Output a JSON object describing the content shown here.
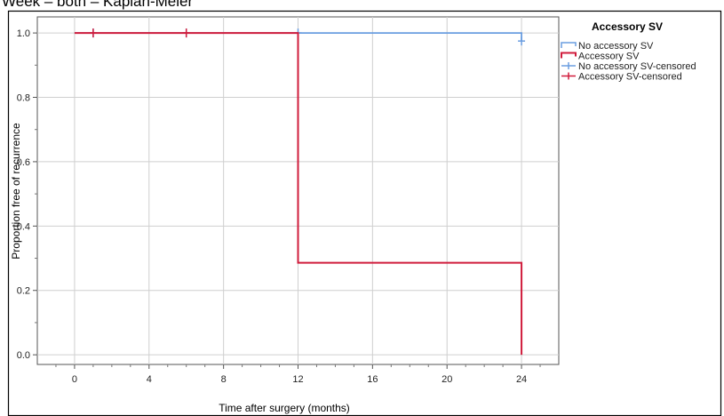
{
  "header": {
    "fragment": "Week – both – Kaplan-Meier"
  },
  "chart_data": {
    "type": "line",
    "step": true,
    "xlabel": "Time after surgery (months)",
    "ylabel": "Proportion free of recurrence",
    "xlim": [
      -2,
      26
    ],
    "ylim": [
      -0.03,
      1.05
    ],
    "xticks": [
      0,
      4,
      8,
      12,
      16,
      20,
      24
    ],
    "yticks": [
      0.0,
      0.2,
      0.4,
      0.6,
      0.8,
      1.0
    ],
    "xtick_labels": [
      "0",
      "4",
      "8",
      "12",
      "16",
      "20",
      "24"
    ],
    "ytick_labels": [
      "0.0",
      "0.2",
      "0.4",
      "0.6",
      "0.8",
      "1.0"
    ],
    "grid": true,
    "legend_title": "Accessory SV",
    "legend_position": "top-right outside",
    "legend_entries": [
      "No accessory SV",
      "Accessory SV",
      "No accessory SV-censored",
      "Accessory SV-censored"
    ],
    "series": [
      {
        "name": "No accessory SV",
        "color": "#6a9de0",
        "steps": [
          [
            0,
            1.0
          ],
          [
            24,
            1.0
          ],
          [
            24,
            0.975
          ]
        ],
        "censored": [
          [
            1,
            1.0
          ],
          [
            6,
            1.0
          ],
          [
            12,
            1.0
          ],
          [
            24,
            0.975
          ]
        ]
      },
      {
        "name": "Accessory SV",
        "color": "#d01c3c",
        "steps": [
          [
            0,
            1.0
          ],
          [
            12,
            1.0
          ],
          [
            12,
            0.286
          ],
          [
            24,
            0.286
          ],
          [
            24,
            0.0
          ]
        ],
        "censored": [
          [
            1,
            1.0
          ],
          [
            6,
            1.0
          ]
        ]
      }
    ]
  }
}
